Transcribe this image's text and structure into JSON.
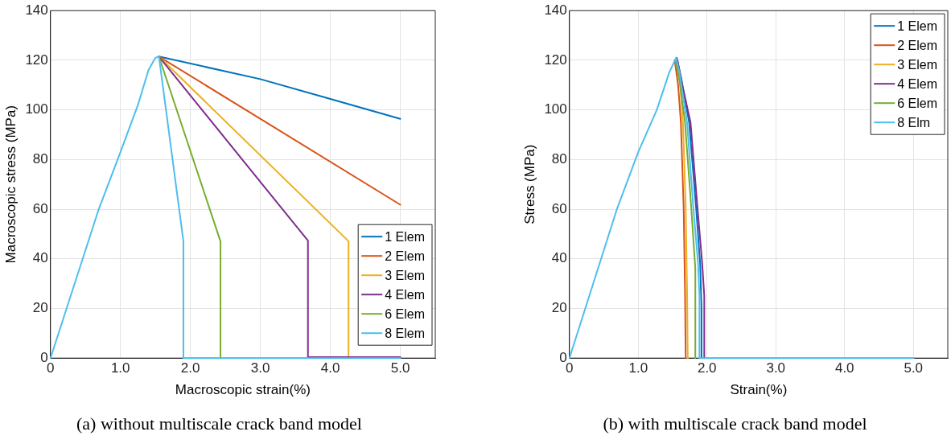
{
  "chart_data": [
    {
      "type": "line",
      "xlabel": "Macroscopic strain(%)",
      "ylabel": "Macroscopic stress (MPa)",
      "annotations": [
        "(a) without multiscale crack band model"
      ],
      "xlim": [
        0,
        5.5
      ],
      "ylim": [
        0,
        140
      ],
      "xticks": [
        0,
        {
          "value": 1,
          "label": "1.0"
        },
        {
          "value": 2,
          "label": "2.0"
        },
        {
          "value": 3,
          "label": "3.0"
        },
        {
          "value": 4,
          "label": "4.0"
        },
        {
          "value": 5,
          "label": "5.0"
        }
      ],
      "yticks": [
        0,
        20,
        40,
        60,
        80,
        100,
        120,
        140
      ],
      "grid": true,
      "legend": "bottom right",
      "marker": "none",
      "line_style": "solid",
      "series": [
        {
          "name": "1 Elem",
          "color": "#0072bd",
          "x": [
            1.55,
            3.0,
            4.0,
            5.0
          ],
          "values": [
            121.5,
            112.4,
            104.4,
            96.4
          ]
        },
        {
          "name": "2 Elem",
          "color": "#d95319",
          "x": [
            1.55,
            5.0
          ],
          "values": [
            121.5,
            61.8
          ]
        },
        {
          "name": "3 Elem",
          "color": "#edb120",
          "x": [
            1.55,
            4.26,
            4.26
          ],
          "values": [
            121.5,
            47.1,
            0
          ]
        },
        {
          "name": "4 Elem",
          "color": "#7e2f8e",
          "x": [
            1.55,
            3.68,
            3.68,
            5.0
          ],
          "values": [
            121.5,
            47.3,
            0.4,
            0.4
          ]
        },
        {
          "name": "6 Elem",
          "color": "#77ac30",
          "x": [
            1.55,
            2.43,
            2.43
          ],
          "values": [
            121.5,
            47,
            0
          ]
        },
        {
          "name": "8 Elem",
          "color": "#4dbeee",
          "x": [
            0,
            0.69,
            1.0,
            1.25,
            1.4,
            1.5,
            1.55,
            1.9,
            1.9,
            5.0
          ],
          "values": [
            0,
            60,
            83,
            102,
            116,
            121,
            121.5,
            47,
            0,
            0
          ]
        }
      ]
    },
    {
      "type": "line",
      "xlabel": "Strain(%)",
      "ylabel": "Stress (MPa)",
      "annotations": [
        "(b) with multiscale crack band model"
      ],
      "xlim": [
        0,
        5.5
      ],
      "ylim": [
        0,
        140
      ],
      "xticks": [
        0,
        {
          "value": 1,
          "label": "1.0"
        },
        {
          "value": 2,
          "label": "2.0"
        },
        {
          "value": 3,
          "label": "3.0"
        },
        {
          "value": 4,
          "label": "4.0"
        },
        {
          "value": 5,
          "label": "5.0"
        }
      ],
      "yticks": [
        0,
        20,
        40,
        60,
        80,
        100,
        120,
        140
      ],
      "grid": true,
      "legend": "top right",
      "marker": "none",
      "line_style": "solid",
      "series": [
        {
          "name": "1 Elem",
          "color": "#0072bd",
          "x": [
            1.56,
            1.63,
            1.74,
            1.84,
            1.9,
            1.92,
            1.92
          ],
          "values": [
            121,
            112,
            95,
            61,
            38,
            20,
            0
          ]
        },
        {
          "name": "2 Elem",
          "color": "#d95319",
          "x": [
            1.53,
            1.58,
            1.62,
            1.66,
            1.68,
            1.69
          ],
          "values": [
            120,
            110,
            95,
            61,
            27,
            0
          ]
        },
        {
          "name": "3 Elem",
          "color": "#edb120",
          "x": [
            1.55,
            1.61,
            1.65,
            1.69,
            1.71,
            1.72
          ],
          "values": [
            120,
            110,
            95,
            61,
            27,
            0
          ]
        },
        {
          "name": "4 Elem",
          "color": "#7e2f8e",
          "x": [
            1.57,
            1.64,
            1.76,
            1.86,
            1.93,
            1.96,
            1.96
          ],
          "values": [
            120,
            110,
            95,
            61,
            38,
            25,
            0
          ]
        },
        {
          "name": "6 Elem",
          "color": "#77ac30",
          "x": [
            1.54,
            1.6,
            1.68,
            1.77,
            1.83,
            1.83
          ],
          "values": [
            120,
            112,
            95,
            61,
            36,
            0
          ]
        },
        {
          "name": "8 Elm",
          "color": "#4dbeee",
          "x": [
            0,
            0.69,
            1.0,
            1.27,
            1.45,
            1.55,
            1.6,
            1.71,
            1.8,
            1.87,
            1.89,
            1.89,
            5.0
          ],
          "values": [
            0,
            60,
            83,
            100,
            115,
            121,
            115,
            95,
            61,
            38,
            25,
            0,
            0
          ]
        }
      ]
    }
  ]
}
